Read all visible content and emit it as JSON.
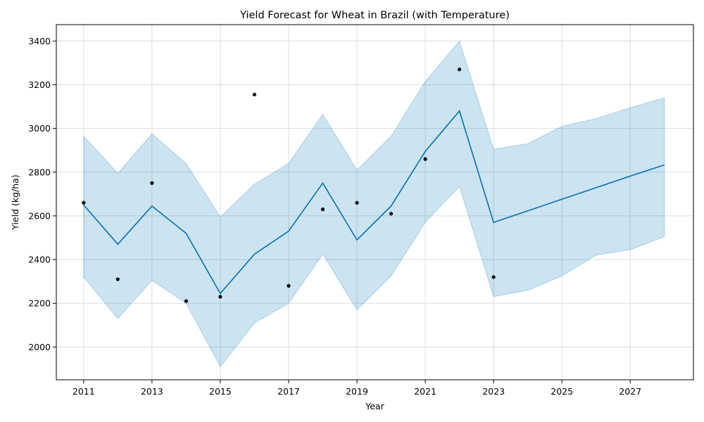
{
  "chart_data": {
    "type": "line",
    "title": "Yield Forecast for Wheat in Brazil (with Temperature)",
    "xlabel": "Year",
    "ylabel": "Yield (kg/ha)",
    "xlim": [
      2010.2,
      2028.85
    ],
    "ylim": [
      1850,
      3475
    ],
    "x_ticks": [
      2011,
      2013,
      2015,
      2017,
      2019,
      2021,
      2023,
      2025,
      2027
    ],
    "y_ticks": [
      2000,
      2200,
      2400,
      2600,
      2800,
      3000,
      3200,
      3400
    ],
    "grid": true,
    "colors": {
      "forecast_line": "#0072b2",
      "interval_fill": "#0072b2",
      "observed_points": "#000000"
    },
    "series": [
      {
        "kind": "interval",
        "x": [
          2011,
          2012,
          2013,
          2014,
          2015,
          2016,
          2017,
          2018,
          2019,
          2020,
          2021,
          2022,
          2023,
          2024,
          2025,
          2026,
          2027,
          2028
        ],
        "lower": [
          2320,
          2130,
          2305,
          2200,
          1910,
          2110,
          2200,
          2425,
          2170,
          2325,
          2570,
          2735,
          2230,
          2260,
          2325,
          2420,
          2445,
          2505
        ],
        "upper": [
          2965,
          2795,
          2975,
          2840,
          2595,
          2745,
          2840,
          3065,
          2810,
          2965,
          3215,
          3400,
          2905,
          2930,
          3010,
          3045,
          3095,
          3140
        ]
      },
      {
        "kind": "line",
        "x": [
          2011,
          2012,
          2013,
          2014,
          2015,
          2016,
          2017,
          2018,
          2019,
          2020,
          2021,
          2022,
          2023,
          2024,
          2025,
          2026,
          2027,
          2028
        ],
        "values": [
          2650,
          2470,
          2645,
          2520,
          2245,
          2425,
          2530,
          2750,
          2490,
          2645,
          2895,
          3080,
          2570,
          2623,
          2676,
          2729,
          2782,
          2833
        ]
      },
      {
        "kind": "scatter",
        "x": [
          2011,
          2012,
          2013,
          2014,
          2015,
          2016,
          2017,
          2018,
          2019,
          2020,
          2021,
          2022,
          2023
        ],
        "values": [
          2660,
          2310,
          2750,
          2210,
          2230,
          3155,
          2280,
          2630,
          2660,
          2610,
          2860,
          3270,
          2320
        ]
      }
    ]
  }
}
